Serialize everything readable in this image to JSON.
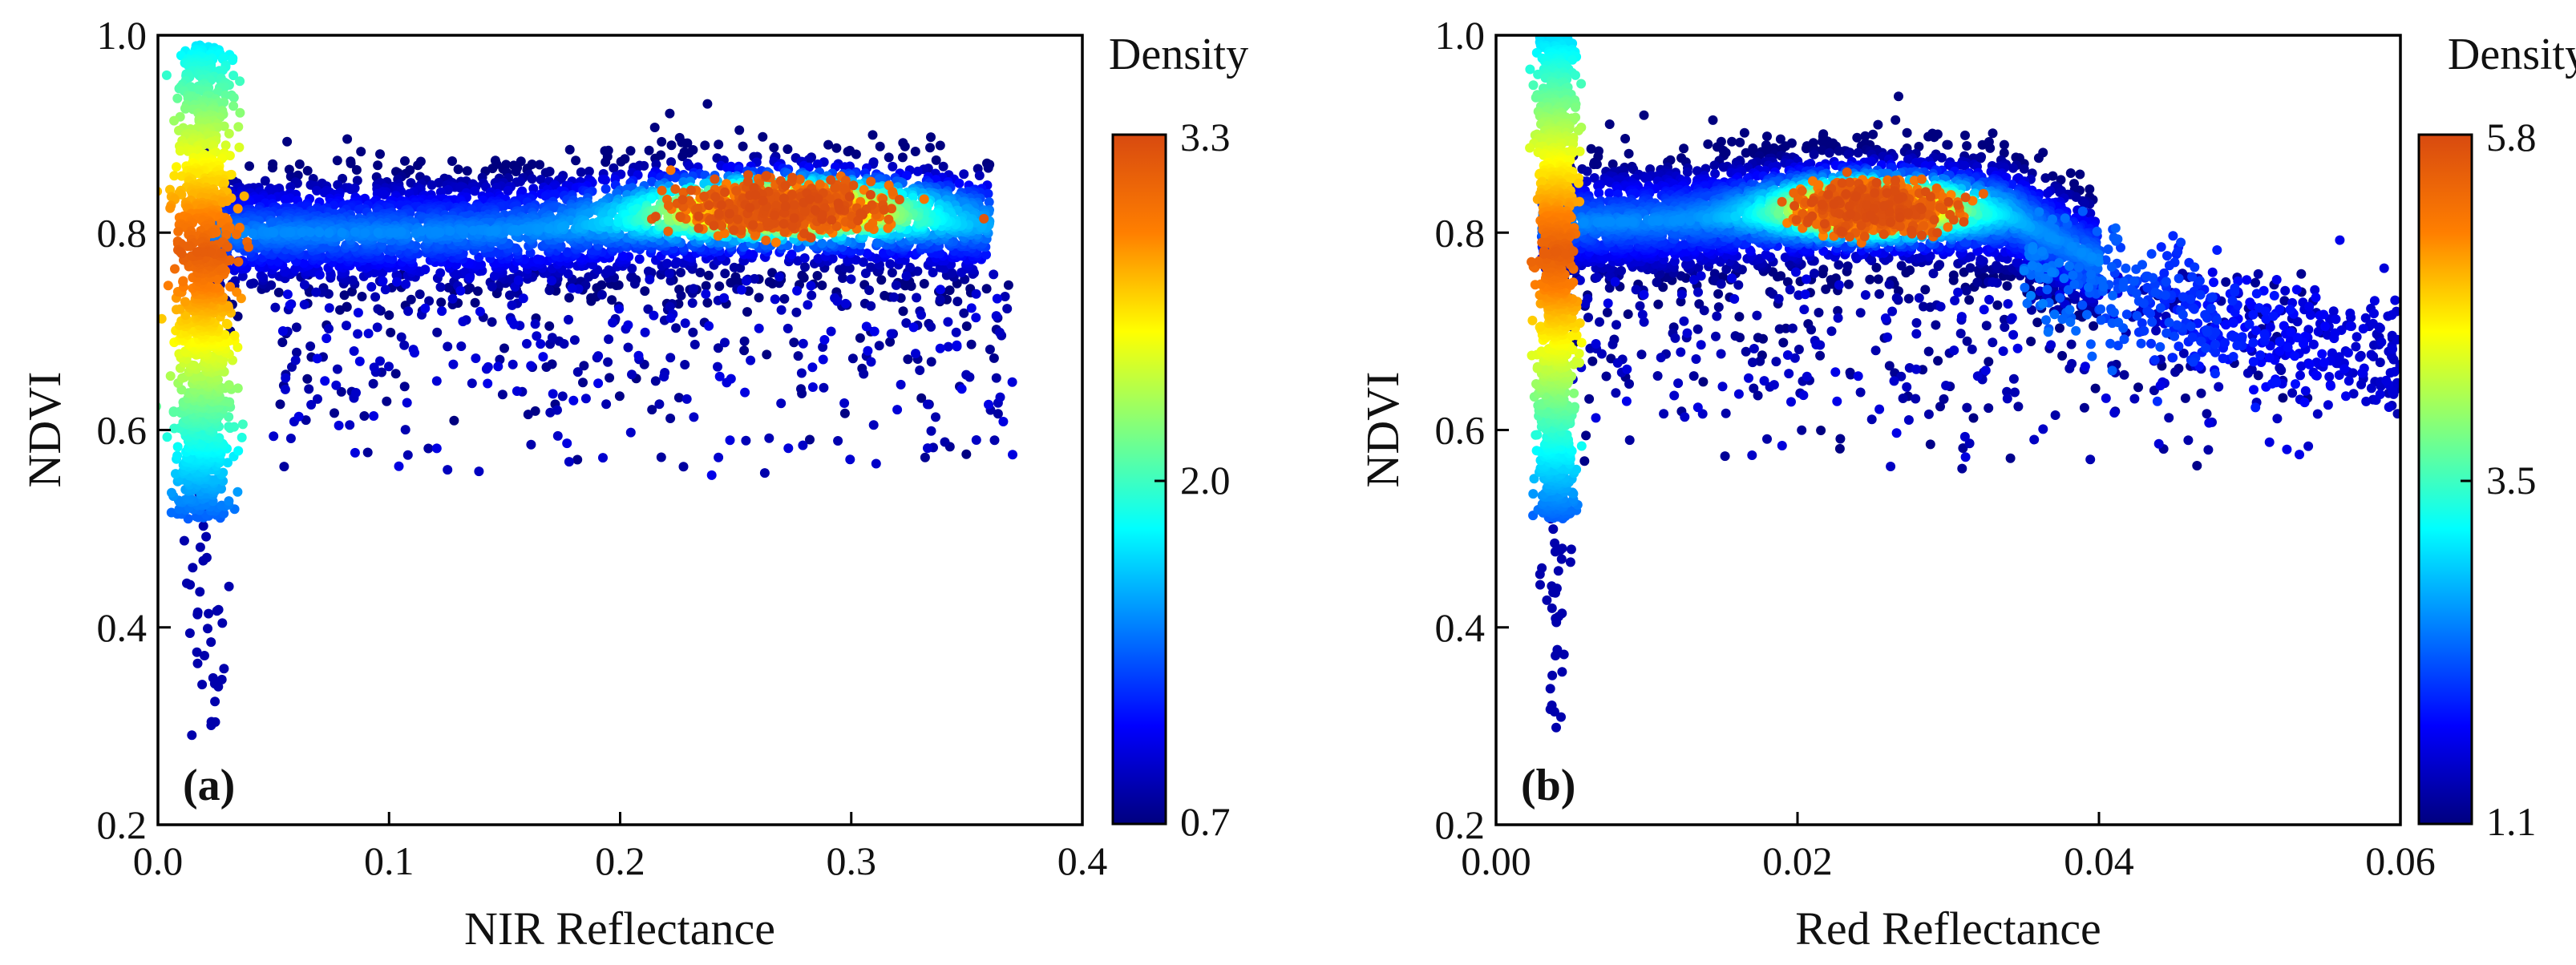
{
  "colors": {
    "colormap": [
      "#00007f",
      "#0000ff",
      "#007fff",
      "#00ffff",
      "#7fff7f",
      "#ffff00",
      "#ff7f00",
      "#d84a10"
    ],
    "axis": "#000000"
  },
  "chart_data": [
    {
      "type": "scatter",
      "panel_label": "(a)",
      "xlabel": "NIR Reflectance",
      "ylabel": "NDVI",
      "xlim": [
        0.0,
        0.4
      ],
      "ylim": [
        0.2,
        1.0
      ],
      "xticks": [
        "0.0",
        "0.1",
        "0.2",
        "0.3",
        "0.4"
      ],
      "yticks": [
        "0.2",
        "0.4",
        "0.6",
        "0.8",
        "1.0"
      ],
      "colorbar": {
        "title": "Density",
        "min": 0.7,
        "max": 3.3,
        "tick_labels": [
          "3.3",
          "2.0",
          "0.7"
        ]
      },
      "distribution": {
        "main_band": {
          "x_range": [
            0.02,
            0.36
          ],
          "ndvi_center": 0.8,
          "ndvi_core_spread": 0.03
        },
        "hot_spot": {
          "x": 0.27,
          "ndvi": 0.825
        },
        "low_x_column": {
          "x": 0.02,
          "ndvi_range": [
            0.29,
            0.99
          ]
        },
        "sparse_outliers": {
          "x_range": [
            0.05,
            0.37
          ],
          "ndvi_range": [
            0.55,
            0.76
          ]
        }
      }
    },
    {
      "type": "scatter",
      "panel_label": "(b)",
      "xlabel": "Red Reflectance",
      "ylabel": "NDVI",
      "xlim": [
        0.0,
        0.06
      ],
      "ylim": [
        0.2,
        1.0
      ],
      "xticks": [
        "0.00",
        "0.02",
        "0.04",
        "0.06"
      ],
      "yticks": [
        "0.2",
        "0.4",
        "0.6",
        "0.8",
        "1.0"
      ],
      "colorbar": {
        "title": "Density",
        "min": 1.1,
        "max": 5.8,
        "tick_labels": [
          "5.8",
          "3.5",
          "1.1"
        ]
      },
      "distribution": {
        "main_band": {
          "x_range": [
            0.003,
            0.04
          ],
          "ndvi_center": 0.81,
          "ndvi_core_spread": 0.03
        },
        "hot_spot": {
          "x": 0.025,
          "ndvi": 0.825
        },
        "descending_tail": {
          "x_range": [
            0.035,
            0.06
          ],
          "ndvi_from": 0.77,
          "ndvi_to": 0.66
        },
        "low_x_column": {
          "x": 0.004,
          "ndvi_range": [
            0.29,
            1.0
          ]
        },
        "sparse_outliers": {
          "x_range": [
            0.005,
            0.055
          ],
          "ndvi_range": [
            0.55,
            0.76
          ]
        }
      }
    }
  ]
}
